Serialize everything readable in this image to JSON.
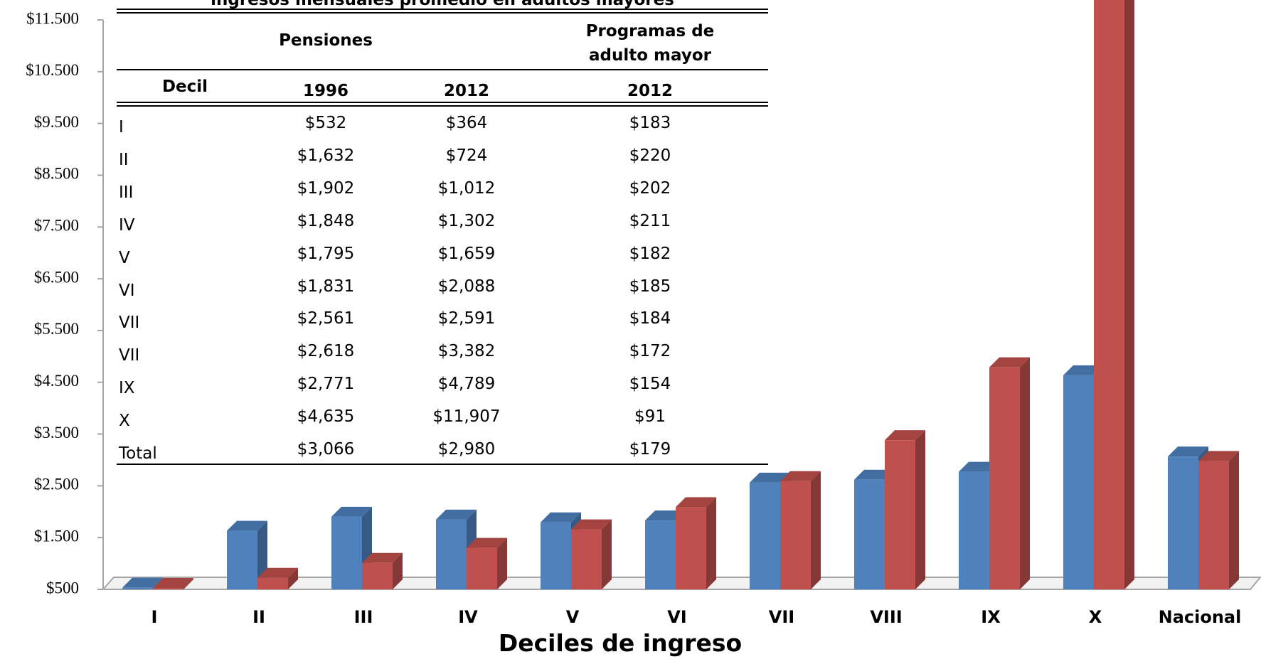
{
  "chart_data": {
    "type": "bar3d",
    "xlabel": "Deciles de ingreso",
    "categories": [
      "I",
      "II",
      "III",
      "IV",
      "V",
      "VI",
      "VII",
      "VIII",
      "IX",
      "X",
      "Nacional"
    ],
    "series": [
      {
        "name": "1996",
        "color": "#4f81bd",
        "values": [
          532,
          1632,
          1902,
          1848,
          1795,
          1831,
          2561,
          2618,
          2771,
          4635,
          3066
        ]
      },
      {
        "name": "2012",
        "color": "#c0504d",
        "values": [
          364,
          724,
          1012,
          1302,
          1659,
          2088,
          2591,
          3382,
          4789,
          11907,
          2980
        ]
      }
    ],
    "ylim": [
      500,
      11500
    ],
    "yticks": [
      {
        "value": 500,
        "label": "$500"
      },
      {
        "value": 1500,
        "label": "$1.500"
      },
      {
        "value": 2500,
        "label": "$2.500"
      },
      {
        "value": 3500,
        "label": "$3.500"
      },
      {
        "value": 4500,
        "label": "$4.500"
      },
      {
        "value": 5500,
        "label": "$5.500"
      },
      {
        "value": 6500,
        "label": "$6.500"
      },
      {
        "value": 7500,
        "label": "$7.500"
      },
      {
        "value": 8500,
        "label": "$8.500"
      },
      {
        "value": 9500,
        "label": "$9.500"
      },
      {
        "value": 10500,
        "label": "$10.500"
      },
      {
        "value": 11500,
        "label": "$11.500"
      }
    ]
  },
  "table": {
    "title": "ingresos  mensuales promedio en adultos mayores",
    "groups": [
      "Pensiones",
      "Programas de adulto mayor"
    ],
    "columns": [
      "Decil",
      "1996",
      "2012",
      "2012"
    ],
    "rows": [
      [
        "I",
        "$532",
        "$364",
        "$183"
      ],
      [
        "II",
        "$1,632",
        "$724",
        "$220"
      ],
      [
        "III",
        "$1,902",
        "$1,012",
        "$202"
      ],
      [
        "IV",
        "$1,848",
        "$1,302",
        "$211"
      ],
      [
        "V",
        "$1,795",
        "$1,659",
        "$182"
      ],
      [
        "VI",
        "$1,831",
        "$2,088",
        "$185"
      ],
      [
        "VII",
        "$2,561",
        "$2,591",
        "$184"
      ],
      [
        "VII",
        "$2,618",
        "$3,382",
        "$172"
      ],
      [
        "IX",
        "$2,771",
        "$4,789",
        "$154"
      ],
      [
        "X",
        "$4,635",
        "$11,907",
        "$91"
      ],
      [
        "Total",
        "$3,066",
        "$2,980",
        "$179"
      ]
    ]
  }
}
